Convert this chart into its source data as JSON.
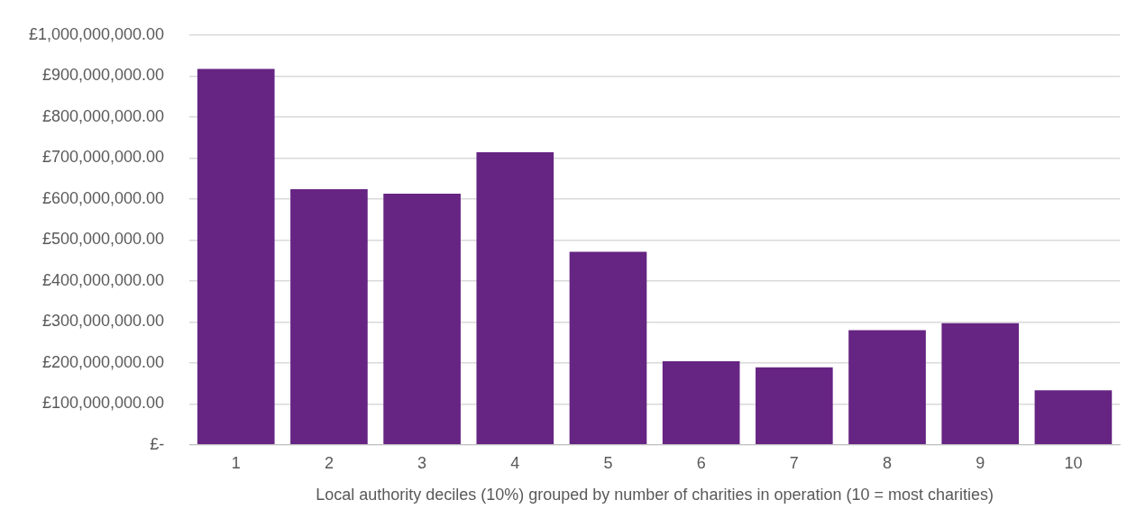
{
  "chart_data": {
    "type": "bar",
    "xlabel": "Local authority deciles (10%) grouped by number of charities in operation (10 = most charities)",
    "categories": [
      "1",
      "2",
      "3",
      "4",
      "5",
      "6",
      "7",
      "8",
      "9",
      "10"
    ],
    "values": [
      917000000,
      624000000,
      613000000,
      714000000,
      471000000,
      204000000,
      189000000,
      280000000,
      297000000,
      133000000
    ],
    "color": "#662483",
    "ylim": [
      0,
      1000000000
    ],
    "yticks": [
      {
        "value": 0,
        "label": "£-"
      },
      {
        "value": 100000000,
        "label": "£100,000,000.00"
      },
      {
        "value": 200000000,
        "label": "£200,000,000.00"
      },
      {
        "value": 300000000,
        "label": "£300,000,000.00"
      },
      {
        "value": 400000000,
        "label": "£400,000,000.00"
      },
      {
        "value": 500000000,
        "label": "£500,000,000.00"
      },
      {
        "value": 600000000,
        "label": "£600,000,000.00"
      },
      {
        "value": 700000000,
        "label": "£700,000,000.00"
      },
      {
        "value": 800000000,
        "label": "£800,000,000.00"
      },
      {
        "value": 900000000,
        "label": "£900,000,000.00"
      },
      {
        "value": 1000000000,
        "label": "£1,000,000,000.00"
      }
    ],
    "grid": "y",
    "legend": false
  }
}
